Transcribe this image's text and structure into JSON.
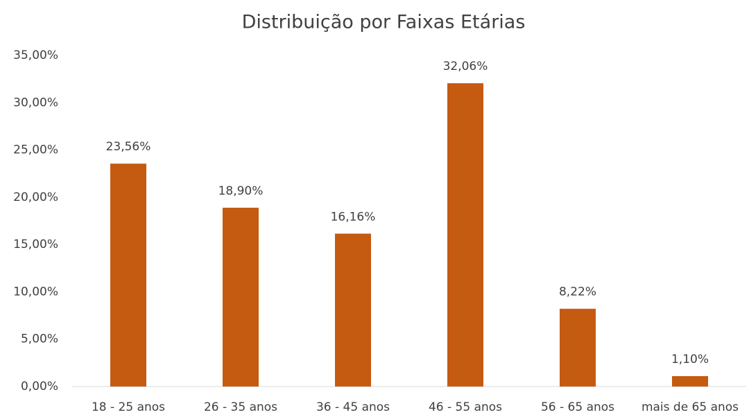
{
  "chart_data": {
    "type": "bar",
    "title": "Distribuição por Faixas Etárias",
    "categories": [
      "18 - 25 anos",
      "26 - 35 anos",
      "36 - 45 anos",
      "46 - 55 anos",
      "56 - 65 anos",
      "mais de 65 anos"
    ],
    "values": [
      23.56,
      18.9,
      16.16,
      32.06,
      8.22,
      1.1
    ],
    "value_labels": [
      "23,56%",
      "18,90%",
      "16,16%",
      "32,06%",
      "8,22%",
      "1,10%"
    ],
    "color": "#c55a11",
    "ylim": [
      0,
      35
    ],
    "yticks": [
      {
        "value": 0,
        "label": "0,00%"
      },
      {
        "value": 5,
        "label": "5,00%"
      },
      {
        "value": 10,
        "label": "10,00%"
      },
      {
        "value": 15,
        "label": "15,00%"
      },
      {
        "value": 20,
        "label": "20,00%"
      },
      {
        "value": 25,
        "label": "25,00%"
      },
      {
        "value": 30,
        "label": "30,00%"
      },
      {
        "value": 35,
        "label": "35,00%"
      }
    ],
    "grid": false
  }
}
